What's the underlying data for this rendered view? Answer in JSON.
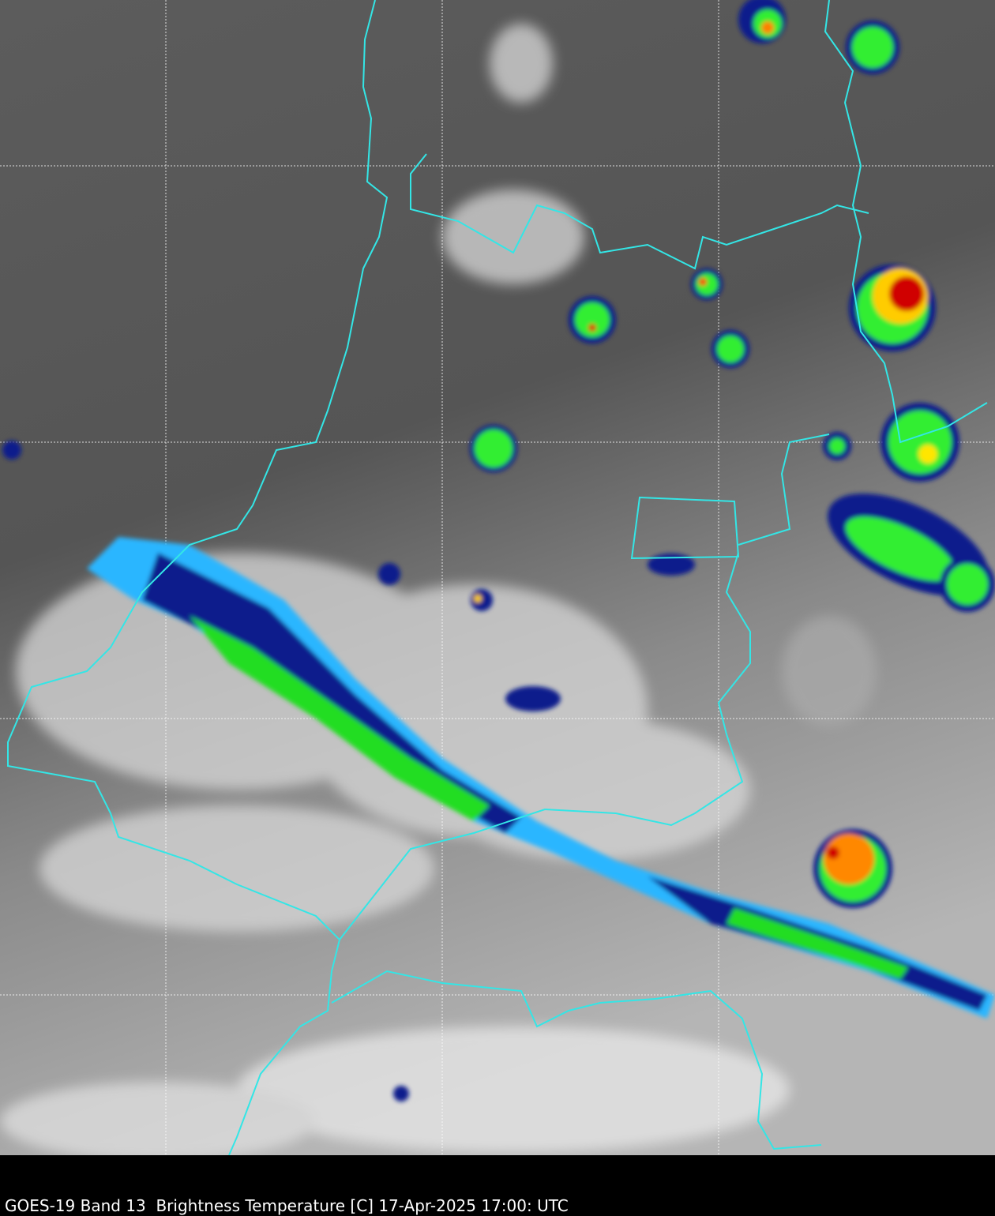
{
  "caption": "GOES-19 Band 13  Brightness Temperature [C] 17-Apr-2025 17:00: UTC",
  "colors": {
    "border": "#33e6e6",
    "grid": "#ffffff",
    "cold_blue": "#1a3cff",
    "dark_blue": "#001a80",
    "green": "#33ff33",
    "yellow": "#ffe600",
    "orange": "#ff8000",
    "red": "#e00000",
    "background_gray": "#5a5a5a"
  },
  "grid": true
}
